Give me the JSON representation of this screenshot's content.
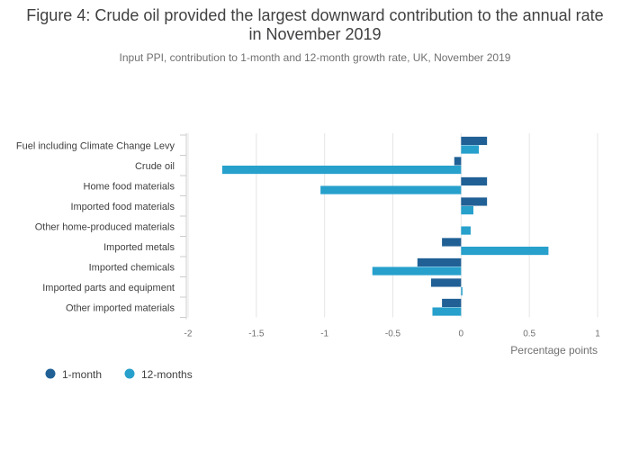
{
  "title": "Figure 4: Crude oil provided the largest downward contribution to the annual rate in November 2019",
  "subtitle": "Input PPI, contribution to 1-month and 12-month growth rate, UK, November 2019",
  "chart_data": {
    "type": "bar",
    "orientation": "horizontal",
    "title": "Figure 4: Crude oil provided the largest downward contribution to the annual rate in November 2019",
    "subtitle": "Input PPI, contribution to 1-month and 12-month growth rate, UK, November 2019",
    "xlabel": "Percentage points",
    "ylabel": "",
    "xlim": [
      -2,
      1
    ],
    "xticks": [
      -2,
      -1.5,
      -1,
      -0.5,
      0,
      0.5,
      1
    ],
    "xtick_labels": [
      "-2",
      "-1.5",
      "-1",
      "-0.5",
      "0",
      "0.5",
      "1"
    ],
    "grid": true,
    "legend_position": "bottom-left",
    "categories": [
      "Fuel including Climate Change Levy",
      "Crude oil",
      "Home food materials",
      "Imported food materials",
      "Other home-produced materials",
      "Imported metals",
      "Imported chemicals",
      "Imported parts and equipment",
      "Other imported materials"
    ],
    "series": [
      {
        "name": "1-month",
        "color": "#206095",
        "values": [
          0.19,
          -0.05,
          0.19,
          0.19,
          0.0,
          -0.14,
          -0.32,
          -0.22,
          -0.14
        ]
      },
      {
        "name": "12-months",
        "color": "#27a0cc",
        "values": [
          0.13,
          -1.75,
          -1.03,
          0.09,
          0.07,
          0.64,
          -0.65,
          0.01,
          -0.21
        ]
      }
    ]
  }
}
